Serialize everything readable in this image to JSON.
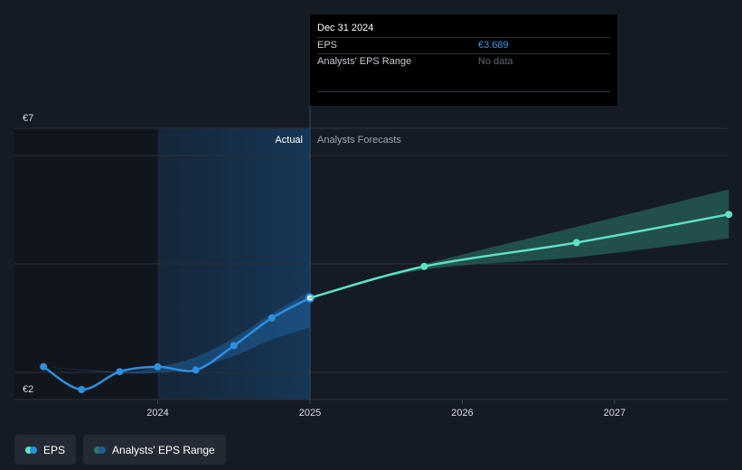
{
  "chart_data": {
    "type": "line",
    "y_tick_labels": [
      "€7",
      "€2"
    ],
    "x_tick_labels": [
      "2024",
      "2025",
      "2026",
      "2027"
    ],
    "regions": {
      "actual_label": "Actual",
      "forecast_label": "Analysts Forecasts"
    },
    "series": [
      {
        "name": "EPS",
        "color": "#2f8fe0",
        "points": [
          {
            "x": 2023.25,
            "y": 2.42
          },
          {
            "x": 2023.5,
            "y": 2.0
          },
          {
            "x": 2023.75,
            "y": 2.33
          },
          {
            "x": 2024.0,
            "y": 2.42
          },
          {
            "x": 2024.25,
            "y": 2.36
          },
          {
            "x": 2024.5,
            "y": 2.81
          },
          {
            "x": 2024.75,
            "y": 3.32
          },
          {
            "x": 2025.0,
            "y": 3.689
          }
        ]
      },
      {
        "name": "EPS Forecast",
        "color": "#5fe0c7",
        "points": [
          {
            "x": 2025.0,
            "y": 3.689
          },
          {
            "x": 2025.75,
            "y": 4.27
          },
          {
            "x": 2026.75,
            "y": 4.71
          },
          {
            "x": 2027.75,
            "y": 5.23
          }
        ]
      }
    ],
    "ranges": [
      {
        "name": "Analysts' EPS Range (actual)",
        "color": "#1f5f9a",
        "upper": [
          {
            "x": 2023.25,
            "y": 2.42
          },
          {
            "x": 2023.75,
            "y": 2.33
          },
          {
            "x": 2024.0,
            "y": 2.42
          },
          {
            "x": 2024.25,
            "y": 2.6
          },
          {
            "x": 2024.5,
            "y": 2.95
          },
          {
            "x": 2024.75,
            "y": 3.4
          },
          {
            "x": 2025.0,
            "y": 3.81
          }
        ],
        "lower": [
          {
            "x": 2023.25,
            "y": 2.42
          },
          {
            "x": 2023.75,
            "y": 2.3
          },
          {
            "x": 2024.0,
            "y": 2.31
          },
          {
            "x": 2024.25,
            "y": 2.4
          },
          {
            "x": 2024.5,
            "y": 2.62
          },
          {
            "x": 2024.75,
            "y": 2.92
          },
          {
            "x": 2025.0,
            "y": 3.15
          }
        ]
      },
      {
        "name": "Analysts' EPS Range (forecast)",
        "color": "#2c7a6c",
        "upper": [
          {
            "x": 2025.0,
            "y": 3.689
          },
          {
            "x": 2025.75,
            "y": 4.31
          },
          {
            "x": 2026.75,
            "y": 5.0
          },
          {
            "x": 2027.75,
            "y": 5.69
          }
        ],
        "lower": [
          {
            "x": 2025.0,
            "y": 3.689
          },
          {
            "x": 2025.75,
            "y": 4.21
          },
          {
            "x": 2026.75,
            "y": 4.44
          },
          {
            "x": 2027.75,
            "y": 4.79
          }
        ]
      }
    ],
    "ylim": [
      1.8,
      7.0
    ],
    "xlim": [
      2022.95,
      2027.75
    ],
    "grid": true
  },
  "tooltip": {
    "date": "Dec 31 2024",
    "eps_label": "EPS",
    "eps_value": "€3.689",
    "range_label": "Analysts' EPS Range",
    "range_value": "No data"
  },
  "legend": {
    "eps_label": "EPS",
    "range_label": "Analysts' EPS Range",
    "eps_colors": [
      "#2f8fe0",
      "#5fe0c7"
    ],
    "range_colors": [
      "#1f5f9a",
      "#2c7a6c"
    ]
  }
}
